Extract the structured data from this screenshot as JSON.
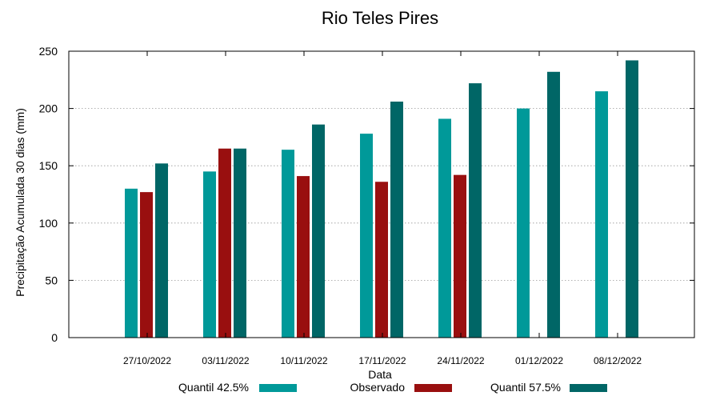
{
  "chart_data": {
    "type": "bar",
    "title": "Rio Teles Pires",
    "xlabel": "Data",
    "ylabel": "Precipitação Acumulada 30 dias (mm)",
    "ylim": [
      0,
      250
    ],
    "yticks": [
      "0",
      "50",
      "100",
      "150",
      "200",
      "250"
    ],
    "grid": true,
    "legend_position": "bottom",
    "categories": [
      "27/10/2022",
      "03/11/2022",
      "10/11/2022",
      "17/11/2022",
      "24/11/2022",
      "01/12/2022",
      "08/12/2022"
    ],
    "series": [
      {
        "name": "Quantil 42.5%",
        "color": "#009999",
        "values": [
          130,
          145,
          164,
          178,
          191,
          200,
          215
        ]
      },
      {
        "name": "Observado",
        "color": "#990f0f",
        "values": [
          127,
          165,
          141,
          136,
          142,
          null,
          null
        ]
      },
      {
        "name": "Quantil 57.5%",
        "color": "#006666",
        "values": [
          152,
          165,
          186,
          206,
          222,
          232,
          242
        ]
      }
    ]
  }
}
